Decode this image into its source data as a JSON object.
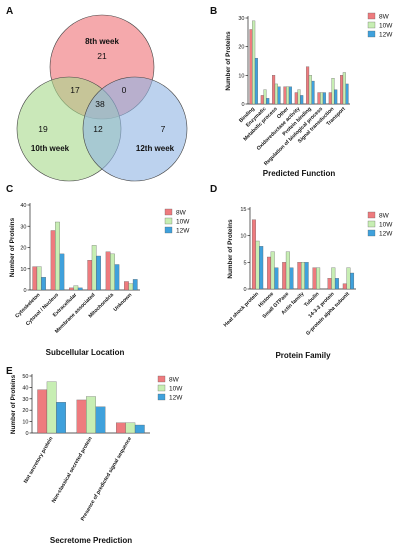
{
  "colors": {
    "8W": "#ee7b7e",
    "10W": "#c7eeb3",
    "12W": "#3fa1dc"
  },
  "chart_data": [
    {
      "panel": "A",
      "type": "venn",
      "sets": [
        "8th week",
        "10th week",
        "12th week"
      ],
      "regions": {
        "only_8": 21,
        "only_10": 19,
        "only_12": 7,
        "8_10": 17,
        "8_12": 0,
        "10_12": 12,
        "all": 38
      },
      "region_labels": [
        "21",
        "19",
        "7",
        "17",
        "0",
        "12",
        "38"
      ]
    },
    {
      "panel": "B",
      "type": "bar",
      "title": "Predicted Function",
      "ylabel": "Number of Proteins",
      "ylim": [
        0,
        30
      ],
      "yticks": [
        "0",
        "10",
        "20",
        "30"
      ],
      "categories": [
        "Binding",
        "Enzymatic",
        "Metabolic process",
        "Other",
        "Oxidoreductase activity",
        "Protein binding",
        "Regulation of biological process",
        "Signal transduction",
        "Transport"
      ],
      "series": [
        {
          "name": "8W",
          "values": [
            26,
            3,
            10,
            6,
            4,
            13,
            4,
            4,
            10
          ]
        },
        {
          "name": "10W",
          "values": [
            29,
            5,
            7,
            6,
            5,
            10,
            4,
            9,
            11
          ]
        },
        {
          "name": "12W",
          "values": [
            16,
            2,
            6,
            6,
            3,
            8,
            4,
            5,
            7
          ]
        }
      ]
    },
    {
      "panel": "C",
      "type": "bar",
      "title": "Subcellular Location",
      "ylabel": "Number of Proteins",
      "ylim": [
        0,
        40
      ],
      "yticks": [
        "0",
        "10",
        "20",
        "30",
        "40"
      ],
      "categories": [
        "Cytoskeleton",
        "Cytosol / Nucleus",
        "Extracellular",
        "Membrane associated",
        "Mitochondria",
        "Unknown"
      ],
      "series": [
        {
          "name": "8W",
          "values": [
            11,
            28,
            1,
            14,
            18,
            4
          ]
        },
        {
          "name": "10W",
          "values": [
            11,
            32,
            2,
            21,
            17,
            3
          ]
        },
        {
          "name": "12W",
          "values": [
            6,
            17,
            1,
            16,
            12,
            5
          ]
        }
      ]
    },
    {
      "panel": "D",
      "type": "bar",
      "title": "Protein Family",
      "ylabel": "Number of Proteins",
      "ylim": [
        0,
        15
      ],
      "yticks": [
        "0",
        "5",
        "10",
        "15"
      ],
      "categories": [
        "Heat shock protein",
        "Histone",
        "Small GTPase",
        "Actin family",
        "Tubulin",
        "14-3-3 protein",
        "G-protein alpha subunit"
      ],
      "series": [
        {
          "name": "8W",
          "values": [
            13,
            6,
            5,
            5,
            4,
            2,
            1
          ]
        },
        {
          "name": "10W",
          "values": [
            9,
            7,
            7,
            5,
            4,
            4,
            4
          ]
        },
        {
          "name": "12W",
          "values": [
            8,
            4,
            4,
            5,
            0,
            2,
            3
          ]
        }
      ]
    },
    {
      "panel": "E",
      "type": "bar",
      "title": "Secretome Prediction",
      "ylabel": "Number of Proteins",
      "ylim": [
        0,
        50
      ],
      "yticks": [
        "0",
        "10",
        "20",
        "30",
        "40",
        "50"
      ],
      "categories": [
        "Not secretory protein",
        "Non-classical secreted protein",
        "Presence of predicted signal sequence"
      ],
      "series": [
        {
          "name": "8W",
          "values": [
            38,
            29,
            9
          ]
        },
        {
          "name": "10W",
          "values": [
            45,
            32,
            9
          ]
        },
        {
          "name": "12W",
          "values": [
            27,
            23,
            7
          ]
        }
      ]
    }
  ]
}
